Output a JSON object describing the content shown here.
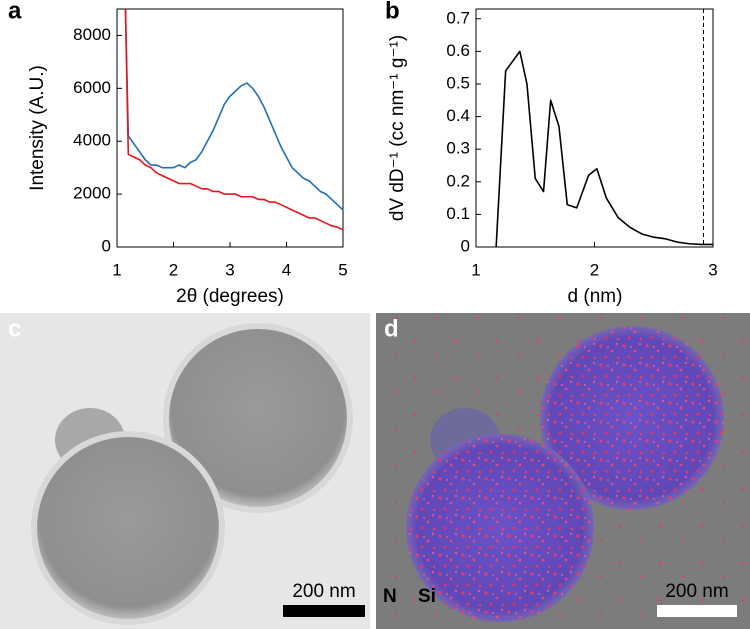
{
  "chart_data": [
    {
      "type": "line",
      "panel_label": "a",
      "x_label": "2θ (degrees)",
      "y_label": "Intensity (A.U.)",
      "x": [
        1.15,
        1.2,
        1.3,
        1.4,
        1.5,
        1.6,
        1.7,
        1.8,
        1.9,
        2.0,
        2.1,
        2.2,
        2.3,
        2.4,
        2.5,
        2.6,
        2.7,
        2.8,
        2.9,
        3.0,
        3.1,
        3.2,
        3.3,
        3.4,
        3.5,
        3.6,
        3.7,
        3.8,
        3.9,
        4.0,
        4.1,
        4.2,
        4.3,
        4.4,
        4.5,
        4.6,
        4.7,
        4.8,
        4.9,
        5.0
      ],
      "series": [
        {
          "color": "#1f6fb5",
          "values": [
            9000,
            4200,
            3900,
            3600,
            3300,
            3100,
            3100,
            3000,
            3000,
            3000,
            3100,
            3000,
            3200,
            3300,
            3600,
            4000,
            4400,
            4900,
            5400,
            5700,
            5900,
            6100,
            6200,
            6000,
            5700,
            5300,
            4800,
            4300,
            3800,
            3400,
            3000,
            2800,
            2600,
            2500,
            2300,
            2100,
            2000,
            1800,
            1600,
            1400
          ]
        },
        {
          "color": "#e8141b",
          "values": [
            9000,
            3500,
            3400,
            3300,
            3100,
            3000,
            2800,
            2700,
            2600,
            2500,
            2400,
            2400,
            2400,
            2300,
            2200,
            2200,
            2100,
            2100,
            2000,
            2000,
            2000,
            1900,
            1900,
            1900,
            1800,
            1800,
            1700,
            1700,
            1600,
            1500,
            1400,
            1300,
            1200,
            1100,
            1100,
            1000,
            900,
            800,
            750,
            650
          ]
        }
      ],
      "xlim": [
        1,
        5
      ],
      "xticks": [
        1,
        2,
        3,
        4,
        5
      ],
      "ylim": [
        0,
        9000
      ],
      "yticks": [
        0,
        2000,
        4000,
        6000,
        8000
      ]
    },
    {
      "type": "line",
      "panel_label": "b",
      "x_label": "d (nm)",
      "y_label": "dV dD⁻¹ (cc nm⁻¹ g⁻¹)",
      "x": [
        1.17,
        1.25,
        1.37,
        1.43,
        1.5,
        1.57,
        1.63,
        1.7,
        1.77,
        1.85,
        1.95,
        2.02,
        2.1,
        2.2,
        2.3,
        2.4,
        2.5,
        2.6,
        2.7,
        2.8,
        2.9,
        3.0
      ],
      "series": [
        {
          "color": "#000000",
          "values": [
            0,
            0.54,
            0.6,
            0.5,
            0.21,
            0.17,
            0.45,
            0.37,
            0.13,
            0.12,
            0.22,
            0.24,
            0.15,
            0.09,
            0.06,
            0.04,
            0.03,
            0.025,
            0.015,
            0.01,
            0.008,
            0.008
          ]
        }
      ],
      "vline": 2.92,
      "xlim": [
        1,
        3
      ],
      "xticks": [
        1,
        2,
        3
      ],
      "ylim": [
        0,
        0.73
      ],
      "yticks": [
        0,
        0.1,
        0.2,
        0.3,
        0.4,
        0.5,
        0.6,
        0.7
      ]
    }
  ],
  "images": [
    {
      "panel_label": "c",
      "scale_bar": "200 nm"
    },
    {
      "panel_label": "d",
      "scale_bar": "200 nm",
      "labels": [
        "N",
        "Si"
      ]
    }
  ]
}
